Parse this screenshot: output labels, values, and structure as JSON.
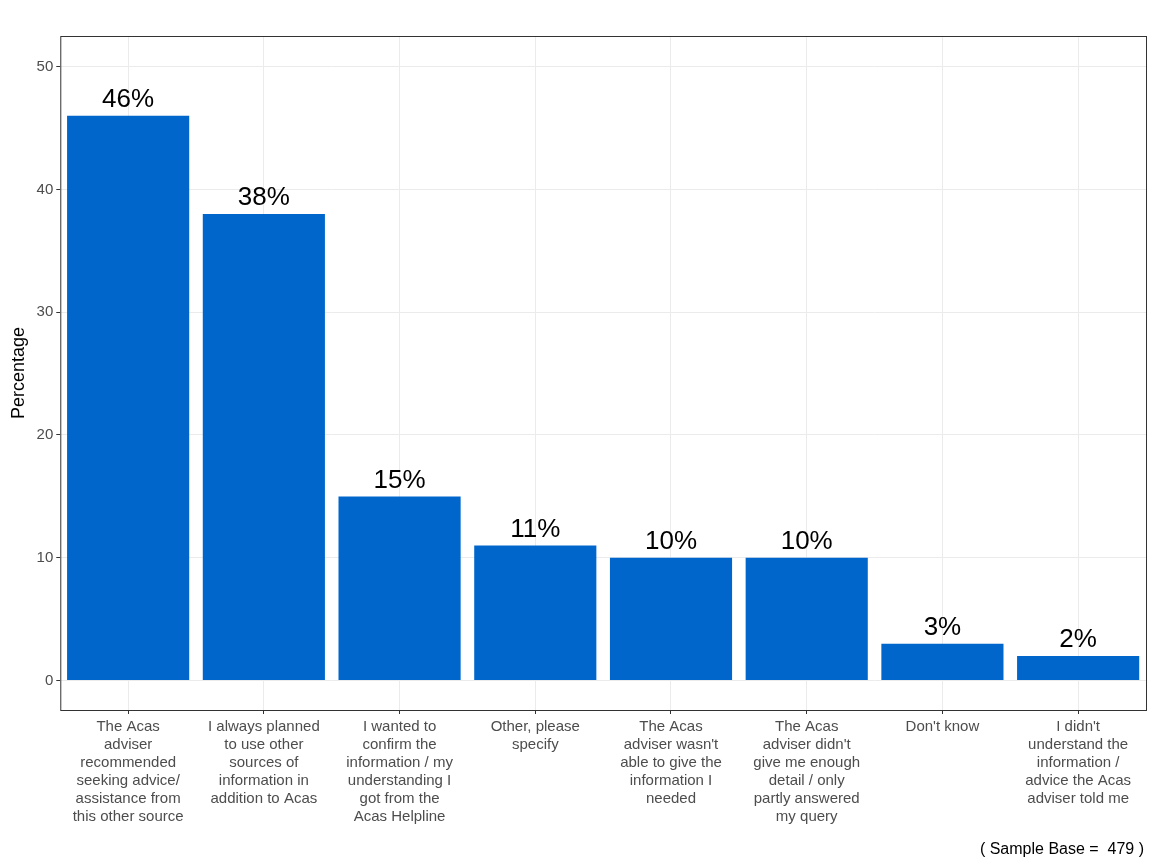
{
  "chart_data": {
    "type": "bar",
    "categories": [
      "The Acas adviser recommended seeking advice/ assistance from this other source",
      "I always planned to use other sources of information in addition to Acas",
      "I wanted to confirm the information / my understanding I got from the Acas Helpline",
      "Other, please specify",
      "The Acas adviser wasn't able to give the information I needed",
      "The Acas adviser didn't give me enough detail / only partly answered my query",
      "Don't know",
      "I didn't understand the information / advice the Acas adviser told me"
    ],
    "values": [
      46,
      38,
      15,
      11,
      10,
      10,
      3,
      2
    ],
    "value_labels": [
      "46%",
      "38%",
      "15%",
      "11%",
      "10%",
      "10%",
      "3%",
      "2%"
    ],
    "data_labels": true,
    "color": "#0066CC",
    "y_label": "Percentage",
    "ylim": [
      -2.4,
      52.5
    ],
    "yticks": [
      0,
      10,
      20,
      30,
      40,
      50
    ],
    "grid": true,
    "annotation": "( Sample Base =  479 )"
  }
}
